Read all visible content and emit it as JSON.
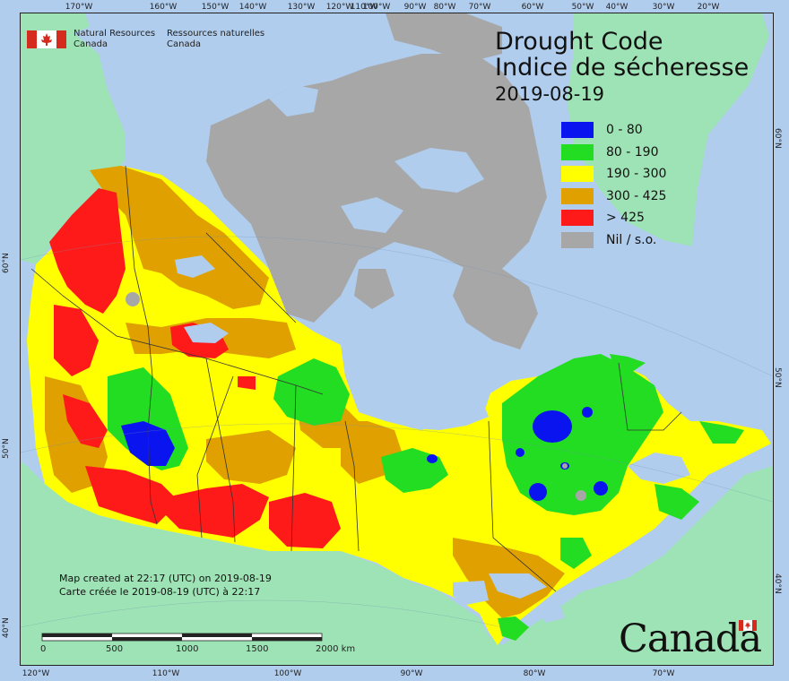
{
  "map": {
    "title_en": "Drought Code",
    "title_fr": "Indice de sécheresse",
    "date": "2019-08-19",
    "colors": {
      "ocean": "#b0cdee",
      "land_outside": "#9ee3b5",
      "arctic_land": "#a7a7a7",
      "water": "#b0cdee",
      "border": "#333333"
    },
    "legend": [
      {
        "label": "0 - 80",
        "color": "#0a14ee"
      },
      {
        "label": "80 - 190",
        "color": "#22dd22"
      },
      {
        "label": "190 - 300",
        "color": "#ffff00"
      },
      {
        "label": "300 - 425",
        "color": "#dfa000"
      },
      {
        "label": "> 425",
        "color": "#ff1a1a"
      },
      {
        "label": "Nil / s.o.",
        "color": "#a7a7a7"
      }
    ],
    "agency": {
      "en_line1": "Natural Resources",
      "en_line2": "Canada",
      "fr_line1": "Ressources naturelles",
      "fr_line2": "Canada"
    },
    "created_en": "Map created at 22:17 (UTC) on 2019-08-19",
    "created_fr": "Carte créée le 2019-08-19 (UTC) à 22:17",
    "wordmark": "Canada",
    "scale": {
      "labels": [
        "0",
        "500",
        "1000",
        "1500",
        "2000  km"
      ]
    },
    "ticks": {
      "top": [
        "170°W",
        "160°W",
        "150°W",
        "140°W",
        "130°W",
        "120°W",
        "110°W",
        "100°W",
        "90°W",
        "80°W",
        "70°W",
        "60°W",
        "50°W",
        "40°W",
        "30°W",
        "20°W"
      ],
      "bottom": [
        "120°W",
        "110°W",
        "100°W",
        "90°W",
        "80°W",
        "70°W"
      ],
      "left": [
        "60°N",
        "50°N",
        "40°N"
      ],
      "right": [
        "60°N",
        "50°N",
        "40°N"
      ]
    }
  }
}
